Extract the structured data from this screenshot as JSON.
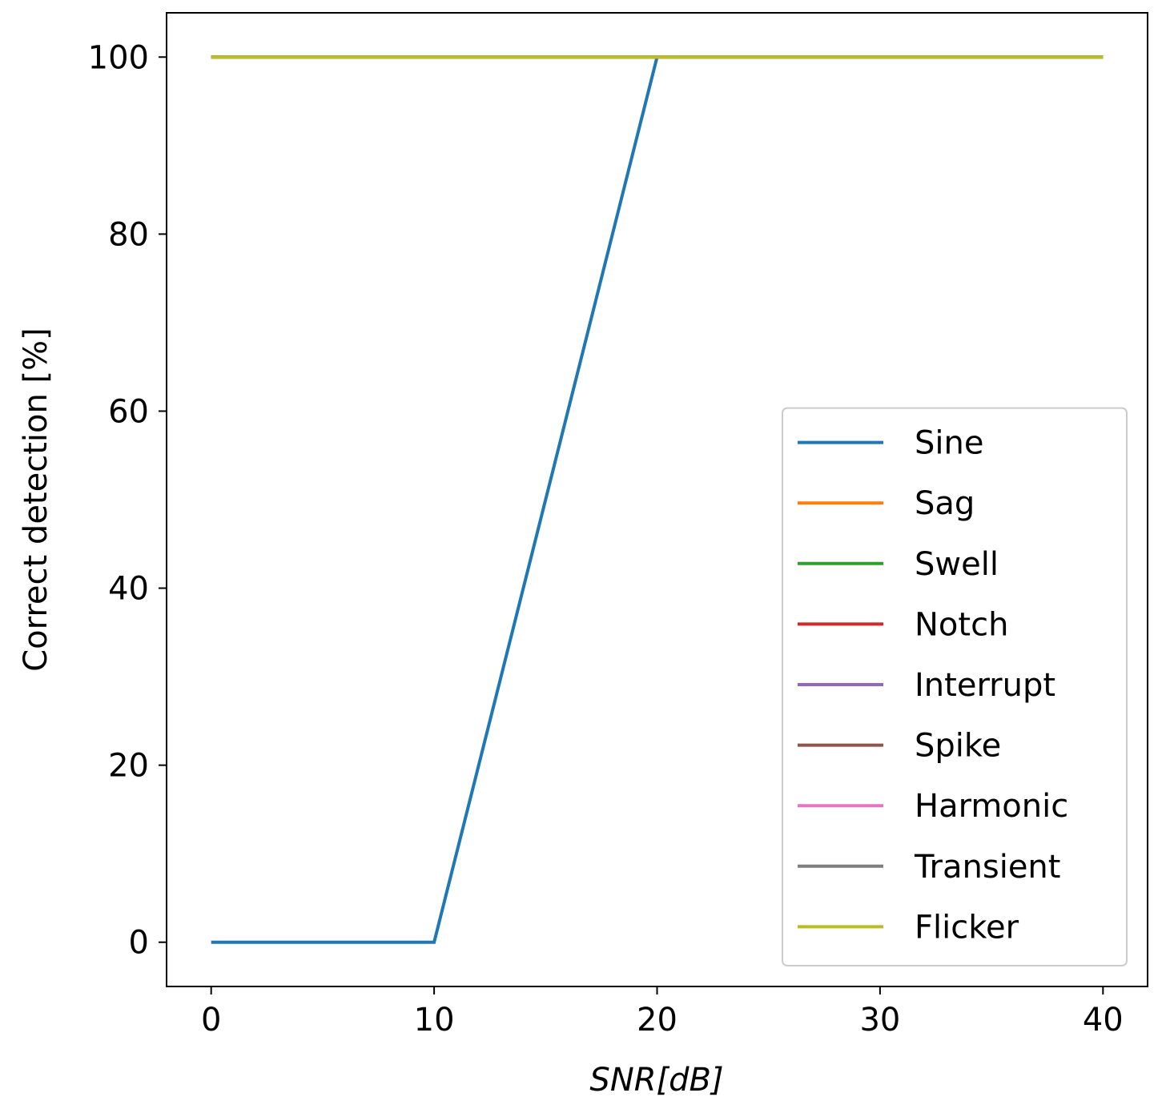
{
  "chart_data": {
    "type": "line",
    "x_label": "SNR[dB]",
    "y_label": "Correct detection [%]",
    "x": [
      0,
      10,
      20,
      30,
      40
    ],
    "series": [
      {
        "name": "Sine",
        "color": "#1f77b4",
        "values": [
          0,
          0,
          100,
          100,
          100
        ]
      },
      {
        "name": "Sag",
        "color": "#ff7f0e",
        "values": [
          100,
          100,
          100,
          100,
          100
        ]
      },
      {
        "name": "Swell",
        "color": "#2ca02c",
        "values": [
          100,
          100,
          100,
          100,
          100
        ]
      },
      {
        "name": "Notch",
        "color": "#d62728",
        "values": [
          100,
          100,
          100,
          100,
          100
        ]
      },
      {
        "name": "Interrupt",
        "color": "#9467bd",
        "values": [
          100,
          100,
          100,
          100,
          100
        ]
      },
      {
        "name": "Spike",
        "color": "#8c564b",
        "values": [
          100,
          100,
          100,
          100,
          100
        ]
      },
      {
        "name": "Harmonic",
        "color": "#e377c2",
        "values": [
          100,
          100,
          100,
          100,
          100
        ]
      },
      {
        "name": "Transient",
        "color": "#7f7f7f",
        "values": [
          100,
          100,
          100,
          100,
          100
        ]
      },
      {
        "name": "Flicker",
        "color": "#bcbd22",
        "values": [
          100,
          100,
          100,
          100,
          100
        ]
      }
    ],
    "xlim": [
      -2,
      42
    ],
    "ylim": [
      -5,
      105
    ],
    "xticks": [
      0,
      10,
      20,
      30,
      40
    ],
    "yticks": [
      0,
      20,
      40,
      60,
      80,
      100
    ],
    "grid": false,
    "legend": "lower right"
  }
}
